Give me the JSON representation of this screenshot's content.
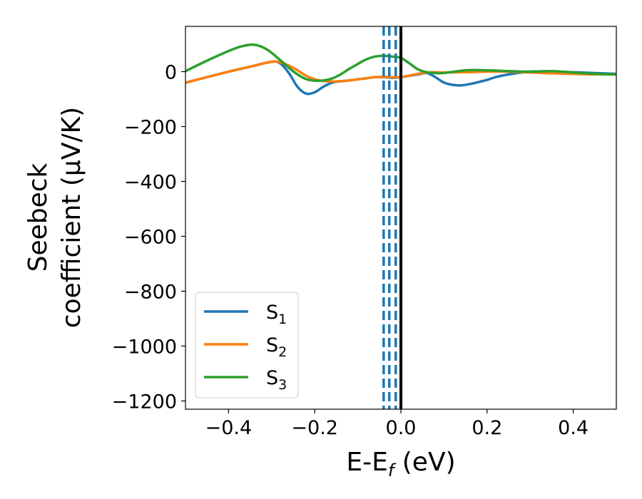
{
  "chart_data": {
    "type": "line",
    "xlabel": "E-E$_f$ (eV)",
    "xlabel_main": "E-E",
    "xlabel_sub": "f",
    "xlabel_tail": " (eV)",
    "ylabel_line1": "Seebeck",
    "ylabel_line2": "coefficient  (μV/K)",
    "xlim": [
      -0.5,
      0.5
    ],
    "ylim": [
      -1230,
      165
    ],
    "xticks": [
      -0.4,
      -0.2,
      0.0,
      0.2,
      0.4
    ],
    "xtick_labels": [
      "−0.4",
      "−0.2",
      "0.0",
      "0.2",
      "0.4"
    ],
    "yticks": [
      0,
      -200,
      -400,
      -600,
      -800,
      -1000,
      -1200
    ],
    "ytick_labels": [
      "0",
      "−200",
      "−400",
      "−600",
      "−800",
      "−1000",
      "−1200"
    ],
    "grid": false,
    "legend_position": "lower-left",
    "series": [
      {
        "name": "S1",
        "label_main": "S",
        "label_sub": "1",
        "color": "#1f77b4",
        "x": [
          -0.5,
          -0.45,
          -0.4,
          -0.35,
          -0.3,
          -0.28,
          -0.26,
          -0.24,
          -0.22,
          -0.2,
          -0.18,
          -0.16,
          -0.14,
          -0.12,
          -0.1,
          -0.08,
          -0.06,
          -0.04,
          -0.02,
          0.0,
          0.02,
          0.04,
          0.06,
          0.08,
          0.1,
          0.12,
          0.14,
          0.16,
          0.18,
          0.2,
          0.22,
          0.25,
          0.3,
          0.35,
          0.4,
          0.45,
          0.5
        ],
        "y": [
          -40,
          -20,
          0,
          18,
          36,
          30,
          -5,
          -55,
          -80,
          -75,
          -55,
          -40,
          -35,
          -32,
          -28,
          -24,
          -20,
          -20,
          -22,
          -20,
          -15,
          -10,
          -5,
          -20,
          -40,
          -48,
          -50,
          -45,
          -38,
          -30,
          -20,
          -10,
          0,
          0,
          -2,
          -5,
          -8
        ]
      },
      {
        "name": "S2",
        "label_main": "S",
        "label_sub": "2",
        "color": "#ff7f0e",
        "x": [
          -0.5,
          -0.45,
          -0.4,
          -0.35,
          -0.3,
          -0.28,
          -0.26,
          -0.24,
          -0.22,
          -0.2,
          -0.18,
          -0.16,
          -0.14,
          -0.12,
          -0.1,
          -0.08,
          -0.06,
          -0.04,
          -0.02,
          0.0,
          0.02,
          0.04,
          0.06,
          0.08,
          0.1,
          0.15,
          0.2,
          0.25,
          0.3,
          0.35,
          0.4,
          0.45,
          0.5
        ],
        "y": [
          -40,
          -20,
          0,
          18,
          36,
          34,
          22,
          5,
          -15,
          -28,
          -34,
          -36,
          -35,
          -32,
          -28,
          -24,
          -20,
          -19,
          -20,
          -20,
          -14,
          -8,
          -3,
          -2,
          -3,
          -2,
          0,
          0,
          -3,
          -6,
          -8,
          -10,
          -10
        ]
      },
      {
        "name": "S3",
        "label_main": "S",
        "label_sub": "3",
        "color": "#2ca02c",
        "x": [
          -0.5,
          -0.45,
          -0.4,
          -0.37,
          -0.34,
          -0.31,
          -0.28,
          -0.26,
          -0.24,
          -0.22,
          -0.2,
          -0.18,
          -0.16,
          -0.14,
          -0.12,
          -0.1,
          -0.08,
          -0.06,
          -0.04,
          -0.02,
          0.0,
          0.02,
          0.04,
          0.06,
          0.08,
          0.1,
          0.15,
          0.2,
          0.25,
          0.3,
          0.35,
          0.4,
          0.45,
          0.5
        ],
        "y": [
          2,
          40,
          75,
          92,
          98,
          80,
          42,
          14,
          -10,
          -27,
          -33,
          -32,
          -25,
          -10,
          10,
          28,
          45,
          55,
          58,
          55,
          50,
          30,
          8,
          -2,
          -5,
          -5,
          5,
          5,
          2,
          0,
          2,
          -3,
          -8,
          -10
        ]
      }
    ],
    "vlines": [
      {
        "x": -0.04,
        "style": "dashed",
        "color": "#1f77b4"
      },
      {
        "x": -0.027,
        "style": "dashed",
        "color": "#1f77b4"
      },
      {
        "x": -0.012,
        "style": "dashed",
        "color": "#1f77b4"
      },
      {
        "x": 0.0,
        "style": "solid",
        "color": "#000000"
      }
    ]
  }
}
